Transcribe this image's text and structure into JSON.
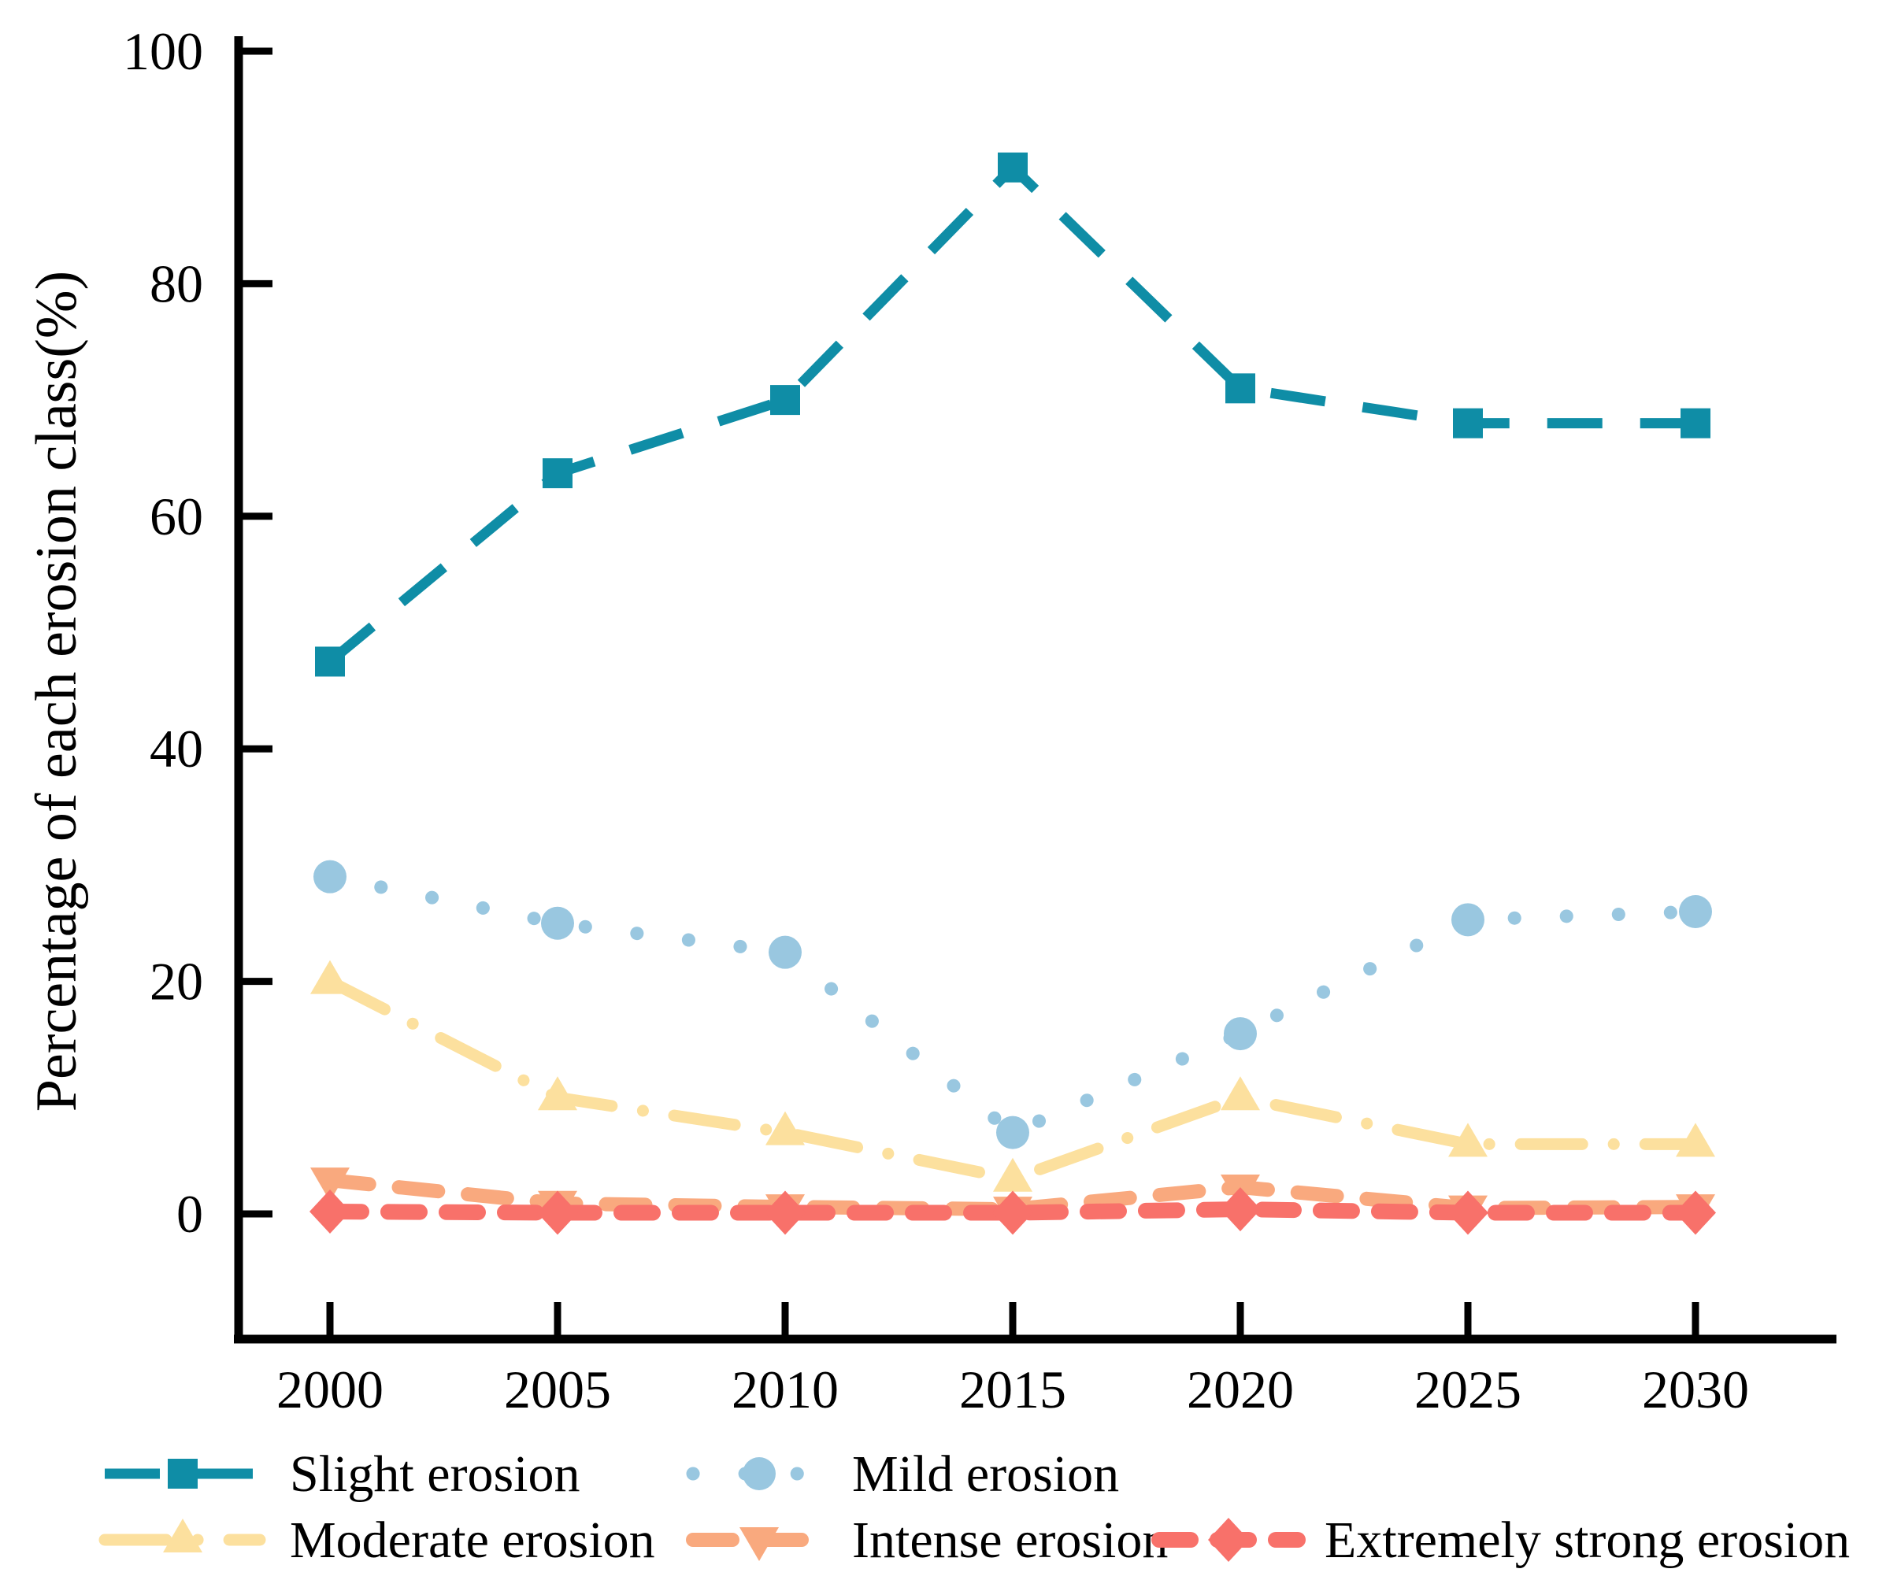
{
  "chart_data": {
    "type": "line",
    "title": "",
    "xlabel": "",
    "ylabel": "Percentage of each erosion class(%)",
    "x": [
      2000,
      2005,
      2010,
      2015,
      2020,
      2025,
      2030
    ],
    "x_tick_labels": [
      "2000",
      "2005",
      "2010",
      "2015",
      "2020",
      "2025",
      "2030"
    ],
    "y_ticks": [
      0,
      20,
      40,
      60,
      80,
      100
    ],
    "ylim": [
      -10.6,
      100
    ],
    "grid": false,
    "legend_position": "bottom",
    "series": [
      {
        "name": "Slight erosion",
        "color": "#0f8da6",
        "marker": "square",
        "linestyle": "long-dash",
        "values": [
          47.5,
          63.7,
          70,
          90,
          71,
          68,
          68
        ]
      },
      {
        "name": "Mild erosion",
        "color": "#99c7e0",
        "marker": "circle",
        "linestyle": "dotted",
        "values": [
          29,
          25,
          22.5,
          7,
          15.5,
          25.3,
          26
        ]
      },
      {
        "name": "Moderate erosion",
        "color": "#fce09e",
        "marker": "triangle-up",
        "linestyle": "dash-dot",
        "values": [
          20,
          10,
          7,
          3,
          10,
          6,
          6
        ]
      },
      {
        "name": "Intense erosion",
        "color": "#f9a97e",
        "marker": "triangle-down",
        "linestyle": "dashed",
        "values": [
          2.9,
          0.9,
          0.6,
          0.4,
          2.3,
          0.5,
          0.6
        ]
      },
      {
        "name": "Extremely strong erosion",
        "color": "#f8716a",
        "marker": "diamond",
        "linestyle": "short-dash",
        "values": [
          0.2,
          0.1,
          0.1,
          0.1,
          0.4,
          0.1,
          0.1
        ]
      }
    ]
  }
}
